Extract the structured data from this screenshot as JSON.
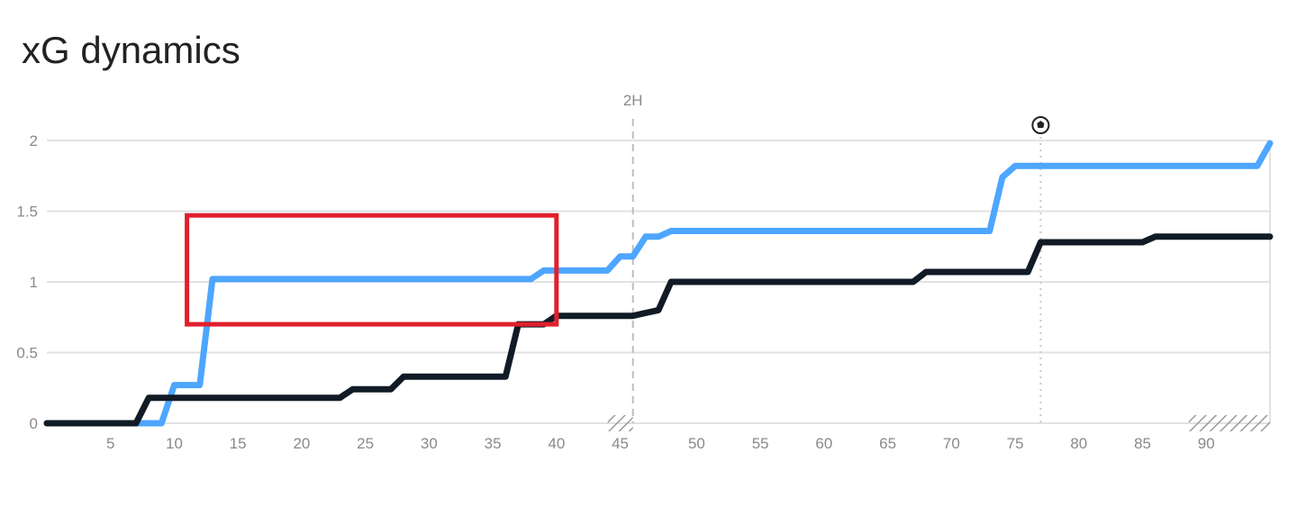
{
  "title": "xG dynamics",
  "chart_data": {
    "type": "line",
    "title": "xG dynamics",
    "ylim": [
      0,
      2
    ],
    "y_ticks": [
      "0",
      "0.5",
      "1",
      "1.5",
      "2"
    ],
    "x_first_half": [
      0,
      46
    ],
    "x_second_half": [
      46,
      96
    ],
    "x_ticks_first_half": [
      5,
      10,
      15,
      20,
      25,
      30,
      35,
      40,
      45
    ],
    "x_ticks_second_half": [
      50,
      55,
      60,
      65,
      70,
      75,
      80,
      85,
      90
    ],
    "halftime_marker": {
      "label": "2H"
    },
    "goal_marker": {
      "minute": 78,
      "icon": "soccer-ball-icon"
    },
    "grid": true,
    "highlight_box": {
      "x": [
        11,
        40
      ],
      "y": [
        0.7,
        1.47
      ],
      "color": "#e0202c"
    },
    "series": [
      {
        "color": "#4da6ff",
        "points": [
          [
            0,
            0
          ],
          [
            9,
            0
          ],
          [
            10,
            0.27
          ],
          [
            12,
            0.27
          ],
          [
            13,
            1.02
          ],
          [
            38,
            1.02
          ],
          [
            39,
            1.08
          ],
          [
            44,
            1.08
          ],
          [
            45,
            1.18
          ],
          [
            46,
            1.18
          ],
          [
            47,
            1.32
          ],
          [
            48,
            1.32
          ],
          [
            49,
            1.36
          ],
          [
            74,
            1.36
          ],
          [
            75,
            1.74
          ],
          [
            76,
            1.82
          ],
          [
            95,
            1.82
          ],
          [
            96,
            1.98
          ]
        ]
      },
      {
        "color": "#111b26",
        "points": [
          [
            0,
            0
          ],
          [
            7,
            0
          ],
          [
            8,
            0.18
          ],
          [
            23,
            0.18
          ],
          [
            24,
            0.24
          ],
          [
            27,
            0.24
          ],
          [
            28,
            0.33
          ],
          [
            36,
            0.33
          ],
          [
            37,
            0.7
          ],
          [
            39,
            0.7
          ],
          [
            40,
            0.76
          ],
          [
            46,
            0.76
          ],
          [
            47,
            0.78
          ],
          [
            48,
            0.8
          ],
          [
            49,
            1.0
          ],
          [
            68,
            1.0
          ],
          [
            69,
            1.07
          ],
          [
            77,
            1.07
          ],
          [
            78,
            1.28
          ],
          [
            86,
            1.28
          ],
          [
            87,
            1.32
          ],
          [
            96,
            1.32
          ]
        ]
      }
    ]
  }
}
